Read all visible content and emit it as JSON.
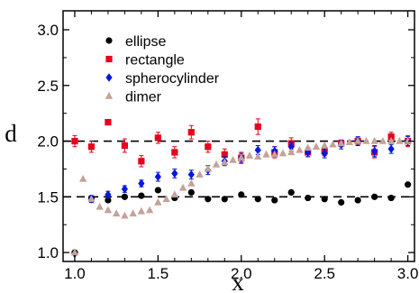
{
  "chart_data": {
    "type": "scatter",
    "title": "",
    "xlabel": "x",
    "ylabel": "d",
    "xlim": [
      0.93,
      3.04
    ],
    "ylim": [
      0.92,
      3.17
    ],
    "xticks": [
      1.0,
      1.5,
      2.0,
      2.5,
      3.0
    ],
    "xtick_labels": [
      "1.0",
      "1.5",
      "2.0",
      "2.5",
      "3.0"
    ],
    "yticks": [
      1.0,
      1.5,
      2.0,
      2.5,
      3.0
    ],
    "ytick_labels": [
      "1.0",
      "1.5",
      "2.0",
      "2.5",
      "3.0"
    ],
    "grid": false,
    "legend_position": "top-left",
    "reference_lines": [
      {
        "y": 2.0,
        "style": "dashed"
      },
      {
        "y": 1.5,
        "style": "dashed"
      }
    ],
    "series": [
      {
        "name": "ellipse",
        "marker": "circle",
        "color": "#000000",
        "points": [
          {
            "x": 1.0,
            "y": 1.0
          },
          {
            "x": 1.1,
            "y": 1.49
          },
          {
            "x": 1.2,
            "y": 1.47
          },
          {
            "x": 1.3,
            "y": 1.5
          },
          {
            "x": 1.4,
            "y": 1.51
          },
          {
            "x": 1.5,
            "y": 1.56
          },
          {
            "x": 1.6,
            "y": 1.49
          },
          {
            "x": 1.7,
            "y": 1.54
          },
          {
            "x": 1.8,
            "y": 1.48
          },
          {
            "x": 1.9,
            "y": 1.48
          },
          {
            "x": 2.0,
            "y": 1.52
          },
          {
            "x": 2.1,
            "y": 1.48
          },
          {
            "x": 2.2,
            "y": 1.47
          },
          {
            "x": 2.3,
            "y": 1.54
          },
          {
            "x": 2.4,
            "y": 1.49
          },
          {
            "x": 2.5,
            "y": 1.48
          },
          {
            "x": 2.6,
            "y": 1.45
          },
          {
            "x": 2.7,
            "y": 1.47
          },
          {
            "x": 2.8,
            "y": 1.5
          },
          {
            "x": 2.9,
            "y": 1.49
          },
          {
            "x": 3.0,
            "y": 1.61
          }
        ]
      },
      {
        "name": "rectangle",
        "marker": "square",
        "color": "#e8001c",
        "points": [
          {
            "x": 1.0,
            "y": 2.0,
            "err": 0.05
          },
          {
            "x": 1.1,
            "y": 1.95,
            "err": 0.05
          },
          {
            "x": 1.2,
            "y": 2.17,
            "err": 0.0
          },
          {
            "x": 1.3,
            "y": 1.96,
            "err": 0.06
          },
          {
            "x": 1.4,
            "y": 1.82,
            "err": 0.05
          },
          {
            "x": 1.5,
            "y": 2.03,
            "err": 0.05
          },
          {
            "x": 1.6,
            "y": 1.9,
            "err": 0.05
          },
          {
            "x": 1.7,
            "y": 2.08,
            "err": 0.06
          },
          {
            "x": 1.8,
            "y": 1.95,
            "err": 0.05
          },
          {
            "x": 1.9,
            "y": 1.88,
            "err": 0.05
          },
          {
            "x": 2.0,
            "y": 1.85,
            "err": 0.05
          },
          {
            "x": 2.1,
            "y": 2.13,
            "err": 0.07
          },
          {
            "x": 2.2,
            "y": 1.9,
            "err": 0.05
          },
          {
            "x": 2.3,
            "y": 1.98,
            "err": 0.05
          },
          {
            "x": 2.4,
            "y": 1.9,
            "err": 0.04
          },
          {
            "x": 2.5,
            "y": 1.91,
            "err": 0.04
          },
          {
            "x": 2.6,
            "y": 1.98,
            "err": 0.03
          },
          {
            "x": 2.7,
            "y": 2.0,
            "err": 0.03
          },
          {
            "x": 2.8,
            "y": 1.9,
            "err": 0.05
          },
          {
            "x": 2.9,
            "y": 2.04,
            "err": 0.04
          },
          {
            "x": 3.0,
            "y": 2.0,
            "err": 0.05
          }
        ]
      },
      {
        "name": "spherocylinder",
        "marker": "diamond",
        "color": "#0018e0",
        "points": [
          {
            "x": 1.0,
            "y": 0.99,
            "err": 0.0
          },
          {
            "x": 1.1,
            "y": 1.48,
            "err": 0.03
          },
          {
            "x": 1.2,
            "y": 1.52,
            "err": 0.03
          },
          {
            "x": 1.3,
            "y": 1.57,
            "err": 0.03
          },
          {
            "x": 1.4,
            "y": 1.62,
            "err": 0.03
          },
          {
            "x": 1.5,
            "y": 1.68,
            "err": 0.04
          },
          {
            "x": 1.6,
            "y": 1.71,
            "err": 0.04
          },
          {
            "x": 1.7,
            "y": 1.7,
            "err": 0.04
          },
          {
            "x": 1.8,
            "y": 1.74,
            "err": 0.04
          },
          {
            "x": 1.9,
            "y": 1.82,
            "err": 0.04
          },
          {
            "x": 2.0,
            "y": 1.85,
            "err": 0.04
          },
          {
            "x": 2.1,
            "y": 1.92,
            "err": 0.04
          },
          {
            "x": 2.2,
            "y": 1.91,
            "err": 0.04
          },
          {
            "x": 2.3,
            "y": 1.95,
            "err": 0.04
          },
          {
            "x": 2.4,
            "y": 1.9,
            "err": 0.04
          },
          {
            "x": 2.5,
            "y": 1.89,
            "err": 0.04
          },
          {
            "x": 2.6,
            "y": 1.97,
            "err": 0.04
          },
          {
            "x": 2.7,
            "y": 2.0,
            "err": 0.04
          },
          {
            "x": 2.8,
            "y": 1.91,
            "err": 0.05
          },
          {
            "x": 2.9,
            "y": 1.93,
            "err": 0.04
          },
          {
            "x": 3.0,
            "y": 2.0,
            "err": 0.04
          }
        ]
      },
      {
        "name": "dimer",
        "marker": "triangle",
        "color": "#c4a29a",
        "points": [
          {
            "x": 1.0,
            "y": 1.0
          },
          {
            "x": 1.05,
            "y": 1.66
          },
          {
            "x": 1.1,
            "y": 1.48
          },
          {
            "x": 1.15,
            "y": 1.41
          },
          {
            "x": 1.2,
            "y": 1.38
          },
          {
            "x": 1.25,
            "y": 1.35
          },
          {
            "x": 1.3,
            "y": 1.33
          },
          {
            "x": 1.35,
            "y": 1.35
          },
          {
            "x": 1.4,
            "y": 1.37
          },
          {
            "x": 1.45,
            "y": 1.38
          },
          {
            "x": 1.5,
            "y": 1.45
          },
          {
            "x": 1.55,
            "y": 1.48
          },
          {
            "x": 1.6,
            "y": 1.52
          },
          {
            "x": 1.65,
            "y": 1.58
          },
          {
            "x": 1.7,
            "y": 1.62
          },
          {
            "x": 1.75,
            "y": 1.7
          },
          {
            "x": 1.8,
            "y": 1.75
          },
          {
            "x": 1.85,
            "y": 1.79
          },
          {
            "x": 1.9,
            "y": 1.81
          },
          {
            "x": 1.95,
            "y": 1.83
          },
          {
            "x": 2.0,
            "y": 1.85
          },
          {
            "x": 2.05,
            "y": 1.87
          },
          {
            "x": 2.1,
            "y": 1.86
          },
          {
            "x": 2.15,
            "y": 1.88
          },
          {
            "x": 2.2,
            "y": 1.88
          },
          {
            "x": 2.25,
            "y": 1.89
          },
          {
            "x": 2.3,
            "y": 1.9
          },
          {
            "x": 2.35,
            "y": 1.92
          },
          {
            "x": 2.4,
            "y": 1.94
          },
          {
            "x": 2.45,
            "y": 1.95
          },
          {
            "x": 2.5,
            "y": 1.96
          },
          {
            "x": 2.55,
            "y": 1.97
          },
          {
            "x": 2.6,
            "y": 1.98
          },
          {
            "x": 2.65,
            "y": 1.99
          },
          {
            "x": 2.7,
            "y": 2.0
          },
          {
            "x": 2.75,
            "y": 2.0
          },
          {
            "x": 2.8,
            "y": 2.0
          },
          {
            "x": 2.85,
            "y": 2.0
          },
          {
            "x": 2.9,
            "y": 2.0
          },
          {
            "x": 2.95,
            "y": 2.0
          },
          {
            "x": 3.0,
            "y": 2.0
          }
        ]
      }
    ]
  }
}
